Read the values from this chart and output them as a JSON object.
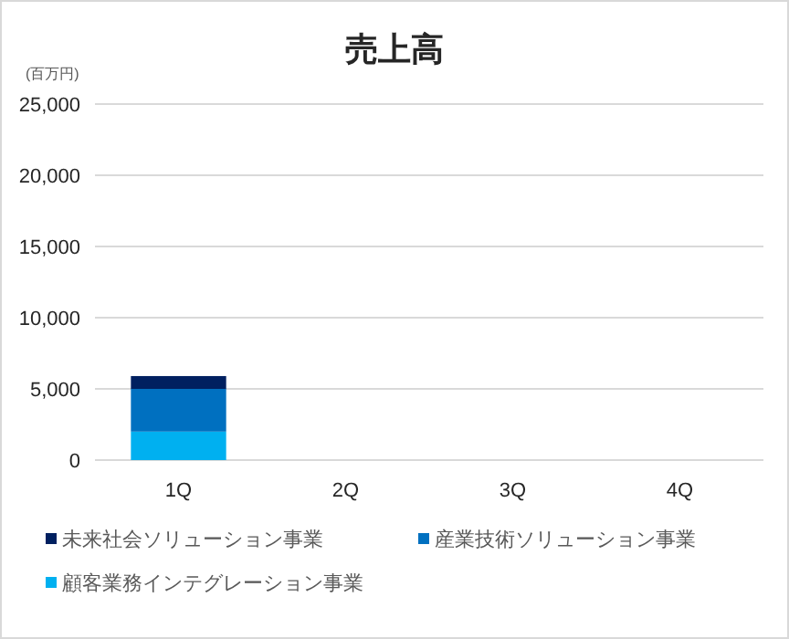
{
  "chart_data": {
    "type": "bar",
    "title": "売上高",
    "ylabel": "(百万円)",
    "stacked": true,
    "categories": [
      "1Q",
      "2Q",
      "3Q",
      "4Q"
    ],
    "series": [
      {
        "name": "顧客業務インテグレーション事業",
        "color": "#00b0f0",
        "values": [
          2000,
          null,
          null,
          null
        ]
      },
      {
        "name": "産業技術ソリューション事業",
        "color": "#0070c0",
        "values": [
          3000,
          null,
          null,
          null
        ]
      },
      {
        "name": "未来社会ソリューション事業",
        "color": "#002060",
        "values": [
          900,
          null,
          null,
          null
        ]
      }
    ],
    "ylim": [
      0,
      25000
    ],
    "yticks": [
      {
        "value": 0,
        "label": "0"
      },
      {
        "value": 5000,
        "label": "5,000"
      },
      {
        "value": 10000,
        "label": "10,000"
      },
      {
        "value": 15000,
        "label": "15,000"
      },
      {
        "value": 20000,
        "label": "20,000"
      },
      {
        "value": 25000,
        "label": "25,000"
      }
    ],
    "grid": "y",
    "legend": "bottom"
  }
}
